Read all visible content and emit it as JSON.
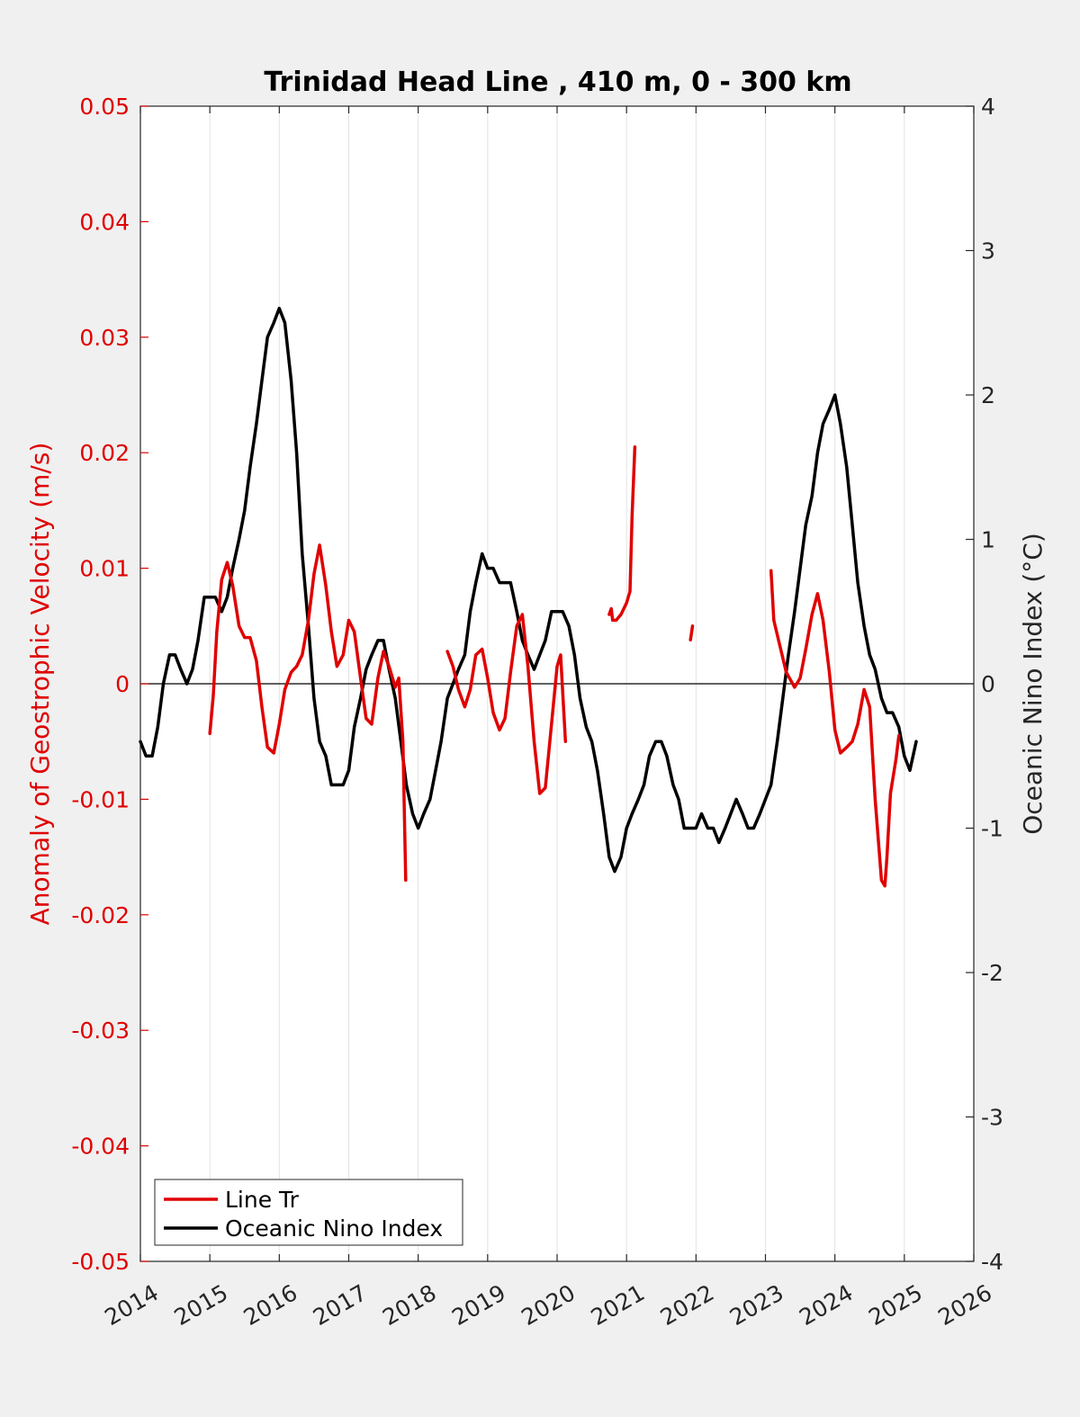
{
  "chart_data": {
    "type": "line",
    "title": "Trinidad Head Line , 410 m, 0 - 300 km",
    "xlabel": "",
    "ylabel_left": "Anomaly of Geostrophic Velocity (m/s)",
    "ylabel_right": "Oceanic Nino Index (°C)",
    "xlim": [
      2014,
      2026
    ],
    "ylim_left": [
      -0.05,
      0.05
    ],
    "ylim_right": [
      -4,
      4
    ],
    "x_ticks": [
      "2014",
      "2015",
      "2016",
      "2017",
      "2018",
      "2019",
      "2020",
      "2021",
      "2022",
      "2023",
      "2024",
      "2025",
      "2026"
    ],
    "y_left_ticks": [
      "0.05",
      "0.04",
      "0.03",
      "0.02",
      "0.01",
      "0",
      "-0.01",
      "-0.02",
      "-0.03",
      "-0.04",
      "-0.05"
    ],
    "y_right_ticks": [
      "4",
      "3",
      "2",
      "1",
      "0",
      "-1",
      "-2",
      "-3",
      "-4"
    ],
    "grid": "vertical",
    "legend_position": "bottom-left",
    "colors": {
      "line_tr": "#e00000",
      "oni": "#000000",
      "left_axis": "#e00000"
    },
    "series": [
      {
        "name": "Line Tr",
        "axis": "left",
        "segments": [
          [
            [
              2015.0,
              -0.0043
            ],
            [
              2015.05,
              -0.001
            ],
            [
              2015.1,
              0.0045
            ],
            [
              2015.17,
              0.009
            ],
            [
              2015.25,
              0.0105
            ],
            [
              2015.33,
              0.0085
            ],
            [
              2015.42,
              0.005
            ],
            [
              2015.5,
              0.004
            ],
            [
              2015.58,
              0.004
            ],
            [
              2015.67,
              0.002
            ],
            [
              2015.75,
              -0.002
            ],
            [
              2015.83,
              -0.0055
            ],
            [
              2015.92,
              -0.006
            ],
            [
              2016.0,
              -0.0035
            ],
            [
              2016.08,
              -0.0005
            ],
            [
              2016.17,
              0.001
            ],
            [
              2016.25,
              0.0015
            ],
            [
              2016.33,
              0.0025
            ],
            [
              2016.42,
              0.0055
            ],
            [
              2016.5,
              0.0095
            ],
            [
              2016.58,
              0.012
            ],
            [
              2016.67,
              0.0085
            ],
            [
              2016.75,
              0.0045
            ],
            [
              2016.83,
              0.0015
            ],
            [
              2016.92,
              0.0025
            ],
            [
              2017.0,
              0.0055
            ],
            [
              2017.08,
              0.0045
            ],
            [
              2017.17,
              0.0005
            ],
            [
              2017.25,
              -0.003
            ],
            [
              2017.33,
              -0.0035
            ],
            [
              2017.42,
              0.0005
            ],
            [
              2017.5,
              0.0028
            ],
            [
              2017.58,
              0.0015
            ],
            [
              2017.67,
              -0.0003
            ],
            [
              2017.72,
              0.0005
            ],
            [
              2017.78,
              -0.005
            ],
            [
              2017.82,
              -0.017
            ]
          ],
          [
            [
              2018.42,
              0.0028
            ],
            [
              2018.5,
              0.0015
            ],
            [
              2018.58,
              -0.0005
            ],
            [
              2018.67,
              -0.002
            ],
            [
              2018.75,
              -0.0005
            ],
            [
              2018.83,
              0.0025
            ],
            [
              2018.92,
              0.003
            ],
            [
              2019.0,
              0.0005
            ],
            [
              2019.08,
              -0.0025
            ],
            [
              2019.17,
              -0.004
            ],
            [
              2019.25,
              -0.003
            ],
            [
              2019.33,
              0.001
            ],
            [
              2019.42,
              0.005
            ],
            [
              2019.5,
              0.006
            ],
            [
              2019.58,
              0.0015
            ],
            [
              2019.67,
              -0.005
            ],
            [
              2019.75,
              -0.0095
            ],
            [
              2019.83,
              -0.009
            ],
            [
              2019.92,
              -0.0035
            ],
            [
              2020.0,
              0.0015
            ],
            [
              2020.05,
              0.0025
            ],
            [
              2020.12,
              -0.005
            ]
          ],
          [
            [
              2020.75,
              0.006
            ],
            [
              2020.78,
              0.0065
            ],
            [
              2020.8,
              0.0055
            ],
            [
              2020.85,
              0.0055
            ],
            [
              2020.92,
              0.006
            ],
            [
              2021.0,
              0.007
            ],
            [
              2021.05,
              0.008
            ],
            [
              2021.08,
              0.0145
            ],
            [
              2021.12,
              0.0205
            ]
          ],
          [
            [
              2021.92,
              0.0038
            ],
            [
              2021.95,
              0.005
            ]
          ],
          [
            [
              2023.08,
              0.0098
            ],
            [
              2023.12,
              0.0055
            ],
            [
              2023.2,
              0.0035
            ],
            [
              2023.3,
              0.001
            ],
            [
              2023.42,
              -0.0003
            ],
            [
              2023.5,
              0.0005
            ],
            [
              2023.58,
              0.003
            ],
            [
              2023.67,
              0.006
            ],
            [
              2023.75,
              0.0078
            ],
            [
              2023.83,
              0.0055
            ],
            [
              2023.92,
              0.001
            ],
            [
              2024.0,
              -0.004
            ],
            [
              2024.08,
              -0.006
            ],
            [
              2024.17,
              -0.0055
            ],
            [
              2024.25,
              -0.005
            ],
            [
              2024.33,
              -0.0035
            ],
            [
              2024.42,
              -0.0005
            ],
            [
              2024.5,
              -0.002
            ],
            [
              2024.58,
              -0.01
            ],
            [
              2024.67,
              -0.017
            ],
            [
              2024.72,
              -0.0175
            ],
            [
              2024.75,
              -0.015
            ],
            [
              2024.8,
              -0.0095
            ],
            [
              2024.88,
              -0.0065
            ],
            [
              2024.92,
              -0.0045
            ]
          ]
        ]
      },
      {
        "name": "Oceanic Nino Index",
        "axis": "right",
        "segments": [
          [
            [
              2014.0,
              -0.4
            ],
            [
              2014.08,
              -0.5
            ],
            [
              2014.17,
              -0.5
            ],
            [
              2014.25,
              -0.3
            ],
            [
              2014.33,
              0.0
            ],
            [
              2014.42,
              0.2
            ],
            [
              2014.5,
              0.2
            ],
            [
              2014.58,
              0.1
            ],
            [
              2014.67,
              0.0
            ],
            [
              2014.75,
              0.1
            ],
            [
              2014.83,
              0.3
            ],
            [
              2014.92,
              0.6
            ],
            [
              2015.0,
              0.6
            ],
            [
              2015.08,
              0.6
            ],
            [
              2015.17,
              0.5
            ],
            [
              2015.25,
              0.6
            ],
            [
              2015.33,
              0.8
            ],
            [
              2015.42,
              1.0
            ],
            [
              2015.5,
              1.2
            ],
            [
              2015.58,
              1.5
            ],
            [
              2015.67,
              1.8
            ],
            [
              2015.75,
              2.1
            ],
            [
              2015.83,
              2.4
            ],
            [
              2015.92,
              2.5
            ],
            [
              2016.0,
              2.6
            ],
            [
              2016.08,
              2.5
            ],
            [
              2016.17,
              2.1
            ],
            [
              2016.25,
              1.6
            ],
            [
              2016.33,
              0.9
            ],
            [
              2016.42,
              0.4
            ],
            [
              2016.5,
              -0.1
            ],
            [
              2016.58,
              -0.4
            ],
            [
              2016.67,
              -0.5
            ],
            [
              2016.75,
              -0.7
            ],
            [
              2016.83,
              -0.7
            ],
            [
              2016.92,
              -0.7
            ],
            [
              2017.0,
              -0.6
            ],
            [
              2017.08,
              -0.3
            ],
            [
              2017.17,
              -0.1
            ],
            [
              2017.25,
              0.1
            ],
            [
              2017.33,
              0.2
            ],
            [
              2017.42,
              0.3
            ],
            [
              2017.5,
              0.3
            ],
            [
              2017.58,
              0.1
            ],
            [
              2017.67,
              -0.1
            ],
            [
              2017.75,
              -0.4
            ],
            [
              2017.83,
              -0.7
            ],
            [
              2017.92,
              -0.9
            ],
            [
              2018.0,
              -1.0
            ],
            [
              2018.08,
              -0.9
            ],
            [
              2018.17,
              -0.8
            ],
            [
              2018.25,
              -0.6
            ],
            [
              2018.33,
              -0.4
            ],
            [
              2018.42,
              -0.1
            ],
            [
              2018.5,
              0.0
            ],
            [
              2018.58,
              0.1
            ],
            [
              2018.67,
              0.2
            ],
            [
              2018.75,
              0.5
            ],
            [
              2018.83,
              0.7
            ],
            [
              2018.92,
              0.9
            ],
            [
              2019.0,
              0.8
            ],
            [
              2019.08,
              0.8
            ],
            [
              2019.17,
              0.7
            ],
            [
              2019.25,
              0.7
            ],
            [
              2019.33,
              0.7
            ],
            [
              2019.42,
              0.5
            ],
            [
              2019.5,
              0.3
            ],
            [
              2019.58,
              0.2
            ],
            [
              2019.67,
              0.1
            ],
            [
              2019.75,
              0.2
            ],
            [
              2019.83,
              0.3
            ],
            [
              2019.92,
              0.5
            ],
            [
              2020.0,
              0.5
            ],
            [
              2020.08,
              0.5
            ],
            [
              2020.17,
              0.4
            ],
            [
              2020.25,
              0.2
            ],
            [
              2020.33,
              -0.1
            ],
            [
              2020.42,
              -0.3
            ],
            [
              2020.5,
              -0.4
            ],
            [
              2020.58,
              -0.6
            ],
            [
              2020.67,
              -0.9
            ],
            [
              2020.75,
              -1.2
            ],
            [
              2020.83,
              -1.3
            ],
            [
              2020.92,
              -1.2
            ],
            [
              2021.0,
              -1.0
            ],
            [
              2021.08,
              -0.9
            ],
            [
              2021.17,
              -0.8
            ],
            [
              2021.25,
              -0.7
            ],
            [
              2021.33,
              -0.5
            ],
            [
              2021.42,
              -0.4
            ],
            [
              2021.5,
              -0.4
            ],
            [
              2021.58,
              -0.5
            ],
            [
              2021.67,
              -0.7
            ],
            [
              2021.75,
              -0.8
            ],
            [
              2021.83,
              -1.0
            ],
            [
              2021.92,
              -1.0
            ],
            [
              2022.0,
              -1.0
            ],
            [
              2022.08,
              -0.9
            ],
            [
              2022.17,
              -1.0
            ],
            [
              2022.25,
              -1.0
            ],
            [
              2022.33,
              -1.1
            ],
            [
              2022.42,
              -1.0
            ],
            [
              2022.5,
              -0.9
            ],
            [
              2022.58,
              -0.8
            ],
            [
              2022.67,
              -0.9
            ],
            [
              2022.75,
              -1.0
            ],
            [
              2022.83,
              -1.0
            ],
            [
              2022.92,
              -0.9
            ],
            [
              2023.0,
              -0.8
            ],
            [
              2023.08,
              -0.7
            ],
            [
              2023.17,
              -0.4
            ],
            [
              2023.25,
              -0.1
            ],
            [
              2023.33,
              0.2
            ],
            [
              2023.42,
              0.5
            ],
            [
              2023.5,
              0.8
            ],
            [
              2023.58,
              1.1
            ],
            [
              2023.67,
              1.3
            ],
            [
              2023.75,
              1.6
            ],
            [
              2023.83,
              1.8
            ],
            [
              2023.92,
              1.9
            ],
            [
              2024.0,
              2.0
            ],
            [
              2024.08,
              1.8
            ],
            [
              2024.17,
              1.5
            ],
            [
              2024.25,
              1.1
            ],
            [
              2024.33,
              0.7
            ],
            [
              2024.42,
              0.4
            ],
            [
              2024.5,
              0.2
            ],
            [
              2024.58,
              0.1
            ],
            [
              2024.67,
              -0.1
            ],
            [
              2024.75,
              -0.2
            ],
            [
              2024.83,
              -0.2
            ],
            [
              2024.92,
              -0.3
            ],
            [
              2025.0,
              -0.5
            ],
            [
              2025.08,
              -0.6
            ],
            [
              2025.17,
              -0.4
            ]
          ]
        ]
      }
    ]
  }
}
